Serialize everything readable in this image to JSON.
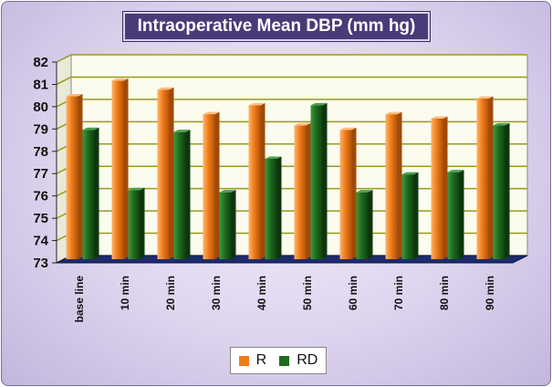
{
  "chart_data": {
    "type": "bar",
    "title": "Intraoperative Mean DBP (mm hg)",
    "xlabel": "",
    "ylabel": "",
    "categories": [
      "base line",
      "10 min",
      "20 min",
      "30 min",
      "40 min",
      "50 min",
      "60 min",
      "70 min",
      "80 min",
      "90 min"
    ],
    "series": [
      {
        "name": "R",
        "color": "#f07d1a",
        "values": [
          80.3,
          81.0,
          80.6,
          79.5,
          79.9,
          79.0,
          78.8,
          79.5,
          79.3,
          80.2
        ]
      },
      {
        "name": "RD",
        "color": "#1f6b1f",
        "values": [
          78.8,
          76.1,
          78.7,
          76.0,
          77.5,
          79.9,
          76.0,
          76.8,
          76.9,
          79.0
        ]
      }
    ],
    "ylim": [
      73,
      82
    ],
    "yticks": [
      73,
      74,
      75,
      76,
      77,
      78,
      79,
      80,
      81,
      82
    ],
    "grid": true,
    "legend_position": "bottom"
  },
  "colors": {
    "wall": "#fbfbee",
    "grid": "#9a9a1e",
    "floor": "#1e2b6b",
    "title_bg": "#4a3a78"
  }
}
